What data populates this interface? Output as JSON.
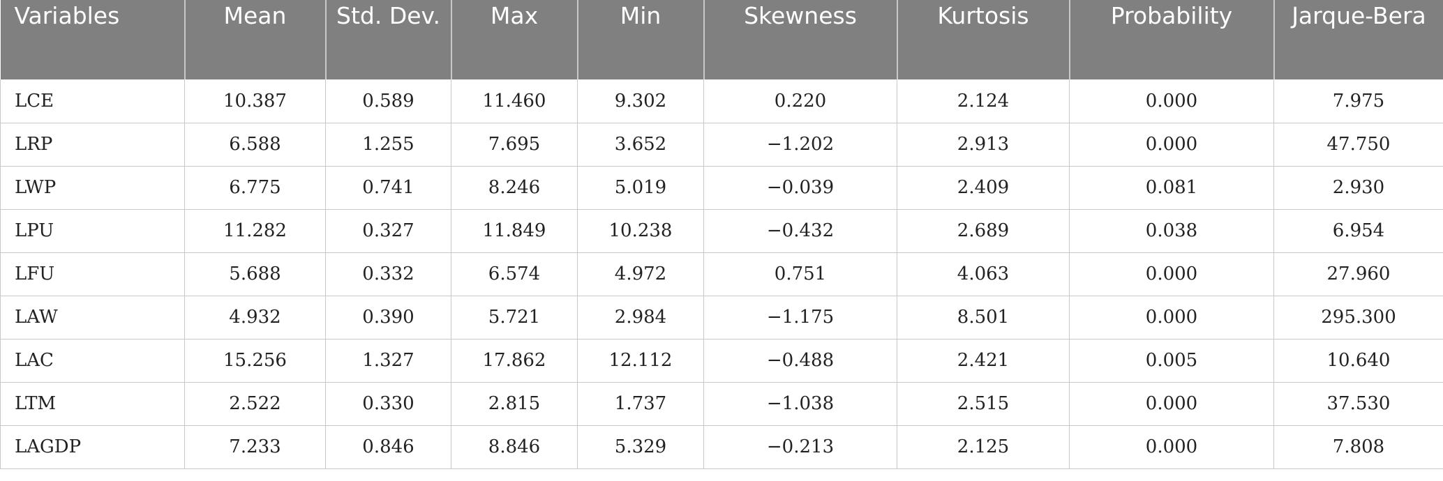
{
  "table": {
    "headers": [
      "Variables",
      "Mean",
      "Std. Dev.",
      "Max",
      "Min",
      "Skewness",
      "Kurtosis",
      "Probability",
      "Jarque-Bera"
    ],
    "rows": [
      [
        "LCE",
        "10.387",
        "0.589",
        "11.460",
        "9.302",
        "0.220",
        "2.124",
        "0.000",
        "7.975"
      ],
      [
        "LRP",
        "6.588",
        "1.255",
        "7.695",
        "3.652",
        "−1.202",
        "2.913",
        "0.000",
        "47.750"
      ],
      [
        "LWP",
        "6.775",
        "0.741",
        "8.246",
        "5.019",
        "−0.039",
        "2.409",
        "0.081",
        "2.930"
      ],
      [
        "LPU",
        "11.282",
        "0.327",
        "11.849",
        "10.238",
        "−0.432",
        "2.689",
        "0.038",
        "6.954"
      ],
      [
        "LFU",
        "5.688",
        "0.332",
        "6.574",
        "4.972",
        "0.751",
        "4.063",
        "0.000",
        "27.960"
      ],
      [
        "LAW",
        "4.932",
        "0.390",
        "5.721",
        "2.984",
        "−1.175",
        "8.501",
        "0.000",
        "295.300"
      ],
      [
        "LAC",
        "15.256",
        "1.327",
        "17.862",
        "12.112",
        "−0.488",
        "2.421",
        "0.005",
        "10.640"
      ],
      [
        "LTM",
        "2.522",
        "0.330",
        "2.815",
        "1.737",
        "−1.038",
        "2.515",
        "0.000",
        "37.530"
      ],
      [
        "LAGDP",
        "7.233",
        "0.846",
        "8.846",
        "5.329",
        "−0.213",
        "2.125",
        "0.000",
        "7.808"
      ]
    ]
  }
}
